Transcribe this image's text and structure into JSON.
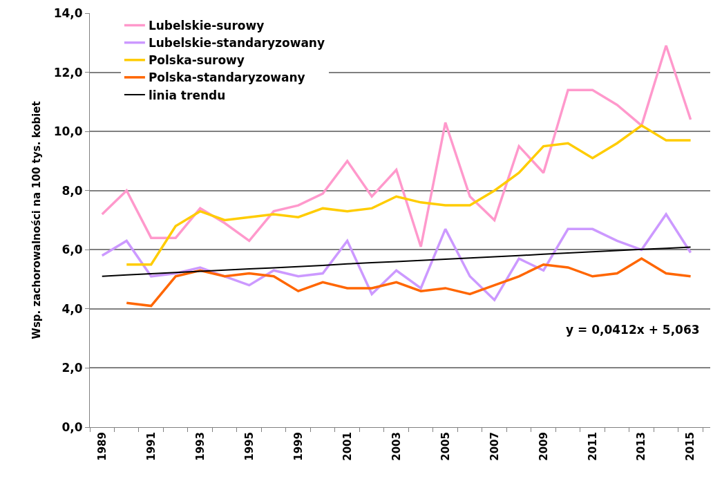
{
  "chart_data": {
    "type": "line",
    "ylabel": "Wsp. zachorowalności na 100 tys. kobiet",
    "categories": [
      "1989",
      null,
      "1991",
      null,
      "1993",
      null,
      "1995",
      null,
      "1999",
      null,
      "2001",
      null,
      "2003",
      null,
      "2005",
      null,
      "2007",
      null,
      "2009",
      null,
      "2011",
      null,
      "2013",
      null,
      "2015"
    ],
    "series": [
      {
        "name": "Lubelskie-surowy",
        "color": "#ff99cc",
        "values": [
          7.2,
          8.0,
          6.4,
          6.4,
          7.4,
          6.9,
          6.3,
          7.3,
          7.5,
          7.9,
          9.0,
          7.8,
          8.7,
          6.1,
          10.3,
          7.8,
          7.0,
          9.5,
          8.6,
          11.4,
          11.4,
          10.9,
          10.2,
          12.9,
          10.4
        ]
      },
      {
        "name": "Lubelskie-standaryzowany",
        "color": "#cc99ff",
        "values": [
          5.8,
          6.3,
          5.1,
          5.2,
          5.4,
          5.1,
          4.8,
          5.3,
          5.1,
          5.2,
          6.3,
          4.5,
          5.3,
          4.7,
          6.7,
          5.1,
          4.3,
          5.7,
          5.3,
          6.7,
          6.7,
          6.3,
          6.0,
          7.2,
          5.9
        ]
      },
      {
        "name": "Polska-surowy",
        "color": "#ffcc00",
        "values": [
          null,
          5.5,
          5.5,
          6.8,
          7.3,
          7.0,
          7.1,
          7.2,
          7.1,
          7.4,
          7.3,
          7.4,
          7.8,
          7.6,
          7.5,
          7.5,
          8.0,
          8.6,
          9.5,
          9.6,
          9.1,
          9.6,
          10.2,
          9.7,
          9.7
        ]
      },
      {
        "name": "Polska-standaryzowany",
        "color": "#ff6600",
        "values": [
          null,
          4.2,
          4.1,
          5.1,
          5.3,
          5.1,
          5.2,
          5.1,
          4.6,
          4.9,
          4.7,
          4.7,
          4.9,
          4.6,
          4.7,
          4.5,
          4.8,
          5.1,
          5.5,
          5.4,
          5.1,
          5.2,
          5.7,
          5.2,
          5.1
        ]
      },
      {
        "name": "linia trendu",
        "color": "#000000",
        "values": [
          5.1,
          5.15,
          5.19,
          5.23,
          5.27,
          5.31,
          5.35,
          5.39,
          5.43,
          5.47,
          5.52,
          5.56,
          5.6,
          5.64,
          5.68,
          5.72,
          5.76,
          5.8,
          5.85,
          5.89,
          5.93,
          5.97,
          6.01,
          6.05,
          6.09
        ]
      }
    ],
    "ylim": [
      0,
      14
    ],
    "yticks": [
      {
        "value": 0,
        "label": "0,0"
      },
      {
        "value": 2,
        "label": "2,0"
      },
      {
        "value": 4,
        "label": "4,0"
      },
      {
        "value": 6,
        "label": "6,0"
      },
      {
        "value": 8,
        "label": "8,0"
      },
      {
        "value": 10,
        "label": "10,0"
      },
      {
        "value": 12,
        "label": "12,0"
      },
      {
        "value": 14,
        "label": "14,0"
      }
    ],
    "grid": "y",
    "legend": "top left",
    "marker": "none",
    "line_style": "solid",
    "annotations": [
      "y = 0,0412x + 5,063"
    ]
  }
}
